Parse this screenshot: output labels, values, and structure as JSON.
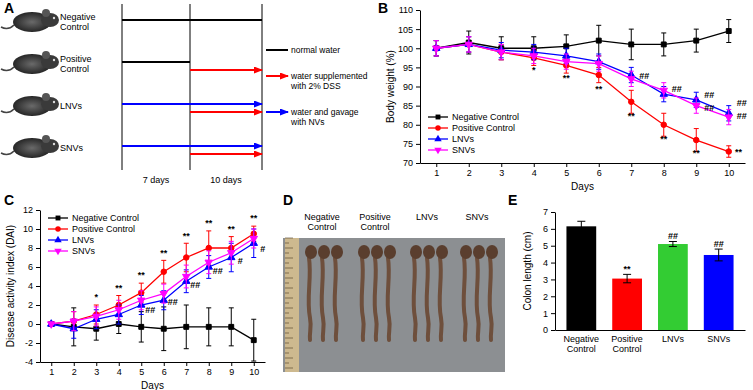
{
  "diagram": {
    "label": "A",
    "rows": [
      {
        "label": "Negative Control",
        "first": [
          0
        ],
        "second": [
          0
        ]
      },
      {
        "label": "Positive Control",
        "first": [
          0
        ],
        "second": [
          1
        ]
      },
      {
        "label": "LNVs",
        "first": [
          2
        ],
        "second": [
          2,
          1
        ]
      },
      {
        "label": "SNVs",
        "first": [
          2
        ],
        "second": [
          2,
          1
        ]
      }
    ],
    "periods": [
      "7 days",
      "10 days"
    ],
    "legend": [
      {
        "text": "normal water",
        "color": "#000000",
        "arrow": false
      },
      {
        "text": "water supplemented with 2% DSS",
        "color": "#ff0000",
        "arrow": true
      },
      {
        "text": "water and gavage with NVs",
        "color": "#0000ff",
        "arrow": true
      }
    ]
  },
  "photo": {
    "label": "D",
    "groups": [
      "Negative Control",
      "Positive Control",
      "LNVs",
      "SNVs"
    ]
  },
  "chart_data": [
    {
      "type": "line",
      "title": "B",
      "xlabel": "Days",
      "ylabel": "Body weight (%)",
      "x": [
        1,
        2,
        3,
        4,
        5,
        6,
        7,
        8,
        9,
        10
      ],
      "xlim": [
        0.5,
        10.5
      ],
      "xticks": [
        1,
        2,
        3,
        4,
        5,
        6,
        7,
        8,
        9,
        10
      ],
      "ylim": [
        70,
        110
      ],
      "yticks": [
        70,
        75,
        80,
        85,
        90,
        95,
        100,
        105,
        110
      ],
      "legend": "lower left",
      "series": [
        {
          "name": "Negative Control",
          "color": "#000000",
          "marker": "square",
          "values": [
            100,
            101.5,
            100,
            100,
            100.5,
            102,
            101,
            101,
            102,
            104.5
          ],
          "errors": [
            2,
            3,
            3,
            3,
            3,
            4,
            4,
            3,
            3,
            3
          ]
        },
        {
          "name": "Positive Control",
          "color": "#ff0000",
          "marker": "circle",
          "values": [
            100,
            101,
            99,
            97.5,
            95.5,
            93,
            86,
            80,
            76,
            73
          ],
          "errors": [
            2,
            2,
            2,
            2,
            2,
            2,
            3,
            3,
            3,
            1.5
          ]
        },
        {
          "name": "LNVs",
          "color": "#0000ff",
          "marker": "triangle",
          "values": [
            100,
            101,
            99.5,
            99,
            98,
            96.5,
            93,
            88,
            86.5,
            83
          ],
          "errors": [
            2,
            2,
            2,
            2,
            2,
            2,
            2,
            2,
            2,
            2
          ]
        },
        {
          "name": "SNVs",
          "color": "#ff00ff",
          "marker": "triangle-down",
          "values": [
            100,
            101,
            99,
            98,
            96.5,
            96,
            92,
            89,
            85,
            82
          ],
          "errors": [
            2,
            2,
            2,
            2,
            2,
            2,
            2,
            2,
            2,
            2
          ]
        }
      ],
      "annotations": [
        {
          "text": "*",
          "x": 4,
          "y": 93.5
        },
        {
          "text": "**",
          "x": 5,
          "y": 91.5
        },
        {
          "text": "**",
          "x": 6,
          "y": 88.5
        },
        {
          "text": "**",
          "x": 7,
          "y": 81.5
        },
        {
          "text": "**",
          "x": 8,
          "y": 75.5
        },
        {
          "text": "**",
          "x": 9,
          "y": 71.8
        },
        {
          "text": "**",
          "x": 10.3,
          "y": 72
        },
        {
          "text": "##",
          "x": 7.4,
          "y": 92
        },
        {
          "text": "##",
          "x": 8.4,
          "y": 88.5
        },
        {
          "text": "##",
          "x": 9.4,
          "y": 87
        },
        {
          "text": "##",
          "x": 10.4,
          "y": 85
        },
        {
          "text": "##",
          "x": 9.4,
          "y": 83.5
        },
        {
          "text": "##",
          "x": 10.4,
          "y": 81.5
        }
      ]
    },
    {
      "type": "line",
      "title": "C",
      "xlabel": "Days",
      "ylabel": "Disease activity index (DAI)",
      "x": [
        1,
        2,
        3,
        4,
        5,
        6,
        7,
        8,
        9,
        10
      ],
      "xlim": [
        0.5,
        10.5
      ],
      "xticks": [
        1,
        2,
        3,
        4,
        5,
        6,
        7,
        8,
        9,
        10
      ],
      "ylim": [
        -4,
        12
      ],
      "yticks": [
        -4,
        -2,
        0,
        2,
        4,
        6,
        8,
        10,
        12
      ],
      "legend": "upper left",
      "series": [
        {
          "name": "Negative Control",
          "color": "#000000",
          "marker": "square",
          "values": [
            0,
            -0.3,
            -0.5,
            0,
            -0.3,
            -0.5,
            -0.3,
            -0.3,
            -0.3,
            -1.7
          ],
          "errors": [
            0,
            2,
            1.2,
            1,
            1.6,
            2.3,
            2.3,
            2,
            2,
            2.2
          ]
        },
        {
          "name": "Positive Control",
          "color": "#ff0000",
          "marker": "circle",
          "values": [
            0,
            0.3,
            1,
            2,
            3.3,
            5.5,
            7,
            8,
            8,
            9.5
          ],
          "errors": [
            0,
            1,
            1,
            1,
            1,
            1.2,
            1.5,
            1.8,
            1.2,
            0.8
          ]
        },
        {
          "name": "LNVs",
          "color": "#0000ff",
          "marker": "triangle",
          "values": [
            0,
            -0.5,
            0.5,
            1,
            2,
            2.5,
            4.5,
            6,
            7,
            8.5
          ],
          "errors": [
            0,
            1,
            1,
            1,
            1,
            1,
            1.2,
            1.2,
            1.5,
            1.5
          ]
        },
        {
          "name": "SNVs",
          "color": "#ff00ff",
          "marker": "triangle-down",
          "values": [
            0,
            0.3,
            0.8,
            1.5,
            2.5,
            3.2,
            5,
            6.5,
            7.5,
            9
          ],
          "errors": [
            0,
            1,
            1,
            1,
            1,
            1,
            1.2,
            1.2,
            1.2,
            1
          ]
        }
      ],
      "annotations": [
        {
          "text": "*",
          "x": 3,
          "y": 2.5
        },
        {
          "text": "**",
          "x": 4,
          "y": 3.5
        },
        {
          "text": "**",
          "x": 5,
          "y": 4.8
        },
        {
          "text": "**",
          "x": 6,
          "y": 7.2
        },
        {
          "text": "**",
          "x": 7,
          "y": 9
        },
        {
          "text": "**",
          "x": 8,
          "y": 10.3
        },
        {
          "text": "**",
          "x": 9,
          "y": 9.7
        },
        {
          "text": "**",
          "x": 10,
          "y": 10.8
        },
        {
          "text": "##",
          "x": 5.4,
          "y": 1.2
        },
        {
          "text": "##",
          "x": 6.4,
          "y": 2
        },
        {
          "text": "##",
          "x": 7.4,
          "y": 3.8
        },
        {
          "text": "##",
          "x": 8.4,
          "y": 5.3
        },
        {
          "text": "#",
          "x": 9.4,
          "y": 6.3
        },
        {
          "text": "#",
          "x": 10.4,
          "y": 7.6
        }
      ]
    },
    {
      "type": "bar",
      "title": "E",
      "ylabel": "Colon length (cm)",
      "categories": [
        "Negative Control",
        "Positive Control",
        "LNVs",
        "SNVs"
      ],
      "values": [
        6.15,
        3.05,
        5.1,
        4.45
      ],
      "errors": [
        0.3,
        0.25,
        0.15,
        0.35
      ],
      "colors": [
        "#000000",
        "#ff0000",
        "#33cc33",
        "#0000ff"
      ],
      "ylim": [
        0,
        7
      ],
      "yticks": [
        0,
        1,
        2,
        3,
        4,
        5,
        6,
        7
      ],
      "annotations": [
        {
          "text": "**",
          "category": "Positive Control",
          "y": 3.45
        },
        {
          "text": "##",
          "category": "LNVs",
          "y": 5.4
        },
        {
          "text": "##",
          "category": "SNVs",
          "y": 4.95
        }
      ]
    }
  ]
}
